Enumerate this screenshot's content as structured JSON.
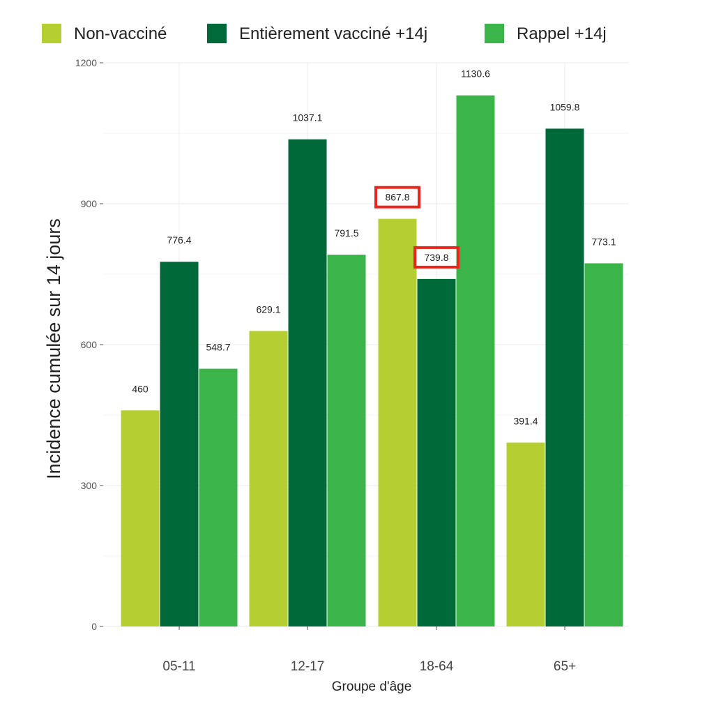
{
  "chart_data": {
    "type": "bar",
    "title": "",
    "xlabel": "Groupe d'âge",
    "ylabel": "Incidence cumulée sur 14 jours",
    "ylim": [
      0,
      1200
    ],
    "yticks": [
      0,
      300,
      600,
      900,
      1200
    ],
    "grid": true,
    "legend_position": "top",
    "categories": [
      "05-11",
      "12-17",
      "18-64",
      "65+"
    ],
    "series": [
      {
        "name": "Non-vacciné",
        "color": "#b5cf33",
        "values": [
          460,
          629.1,
          867.8,
          391.4
        ],
        "labels": [
          "460",
          "629.1",
          "867.8",
          "391.4"
        ],
        "highlighted": [
          false,
          false,
          true,
          false
        ]
      },
      {
        "name": "Entièrement vacciné +14j",
        "color": "#00693a",
        "values": [
          776.4,
          1037.1,
          739.8,
          1059.8
        ],
        "labels": [
          "776.4",
          "1037.1",
          "739.8",
          "1059.8"
        ],
        "highlighted": [
          false,
          false,
          true,
          false
        ]
      },
      {
        "name": "Rappel +14j",
        "color": "#3bb54a",
        "values": [
          548.7,
          791.5,
          1130.6,
          773.1
        ],
        "labels": [
          "548.7",
          "791.5",
          "1130.6",
          "773.1"
        ],
        "highlighted": [
          false,
          false,
          false,
          false
        ]
      }
    ],
    "highlight_color": "#e8261b"
  }
}
